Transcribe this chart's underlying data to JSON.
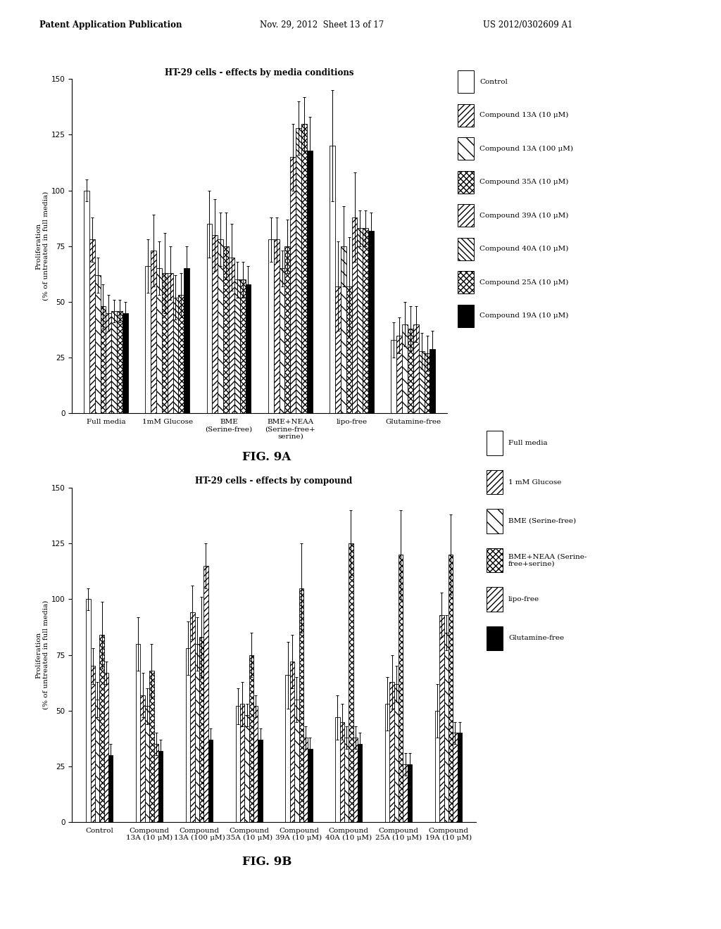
{
  "fig9a": {
    "title": "HT-29 cells - effects by media conditions",
    "ylabel": "Proliferation\n(% of untreated in full media)",
    "groups": [
      "Full media",
      "1mM Glucose",
      "BME\n(Serine-free)",
      "BME+NEAA\n(Serine-free+\nserine)",
      "lipo-free",
      "Glutamine-free"
    ],
    "series_labels": [
      "Control",
      "Compound 13A (10 μM)",
      "Compound 13A (100 μM)",
      "Compound 35A (10 μM)",
      "Compound 39A (10 μM)",
      "Compound 40A (10 μM)",
      "Compound 25A (10 μM)",
      "Compound 19A (10 μM)"
    ],
    "group_data": [
      [
        100,
        78,
        62,
        48,
        45,
        46,
        46,
        45
      ],
      [
        66,
        73,
        65,
        63,
        63,
        52,
        53,
        65
      ],
      [
        85,
        80,
        78,
        75,
        70,
        60,
        60,
        58
      ],
      [
        78,
        78,
        65,
        75,
        115,
        128,
        130,
        118
      ],
      [
        120,
        57,
        75,
        57,
        88,
        83,
        83,
        82
      ],
      [
        33,
        35,
        40,
        38,
        40,
        28,
        27,
        29
      ]
    ],
    "group_errs": [
      [
        5,
        10,
        8,
        10,
        8,
        5,
        5,
        5
      ],
      [
        12,
        16,
        12,
        18,
        12,
        10,
        10,
        10
      ],
      [
        15,
        16,
        12,
        15,
        15,
        8,
        8,
        8
      ],
      [
        10,
        10,
        8,
        12,
        15,
        12,
        12,
        15
      ],
      [
        25,
        20,
        18,
        22,
        20,
        8,
        8,
        8
      ],
      [
        8,
        8,
        10,
        10,
        8,
        8,
        8,
        8
      ]
    ],
    "n_series": 8,
    "n_groups": 6
  },
  "fig9b": {
    "title": "HT-29 cells - effects by compound",
    "ylabel": "Proliferation\n(% of untreated in full media)",
    "groups": [
      "Control",
      "Compound\n13A (10 μM)",
      "Compound\n13A (100 μM)",
      "Compound\n35A (10 μM)",
      "Compound\n39A (10 μM)",
      "Compound\n40A (10 μM)",
      "Compound\n25A (10 μM)",
      "Compound\n19A (10 μM)"
    ],
    "series_labels": [
      "Full media",
      "1 mM Glucose",
      "BME (Serine-free)",
      "BME+NEAA (Serine-\nfree+serine)",
      "lipo-free",
      "Glutamine-free"
    ],
    "group_data": [
      [
        100,
        70,
        55,
        84,
        67,
        30
      ],
      [
        80,
        57,
        52,
        68,
        35,
        32
      ],
      [
        78,
        94,
        80,
        83,
        115,
        37
      ],
      [
        52,
        53,
        48,
        75,
        52,
        37
      ],
      [
        66,
        72,
        55,
        105,
        38,
        33
      ],
      [
        47,
        45,
        38,
        125,
        38,
        35
      ],
      [
        53,
        63,
        62,
        120,
        26,
        26
      ],
      [
        50,
        93,
        85,
        120,
        40,
        40
      ]
    ],
    "group_errs": [
      [
        5,
        8,
        8,
        15,
        5,
        5
      ],
      [
        12,
        10,
        8,
        12,
        5,
        5
      ],
      [
        12,
        12,
        12,
        18,
        10,
        5
      ],
      [
        8,
        10,
        5,
        10,
        5,
        5
      ],
      [
        15,
        12,
        10,
        20,
        5,
        5
      ],
      [
        10,
        8,
        5,
        15,
        5,
        5
      ],
      [
        12,
        12,
        8,
        20,
        5,
        5
      ],
      [
        12,
        10,
        8,
        18,
        5,
        5
      ]
    ],
    "n_series": 6,
    "n_groups": 8
  },
  "hatch_styles_a": [
    "",
    "////",
    "\\\\",
    "xxxx",
    "////",
    "\\\\\\\\",
    "xxxx",
    ""
  ],
  "face_colors_a": [
    "white",
    "white",
    "white",
    "white",
    "white",
    "white",
    "white",
    "black"
  ],
  "hatch_styles_b": [
    "",
    "////",
    "\\\\",
    "xxxx",
    "////",
    ""
  ],
  "face_colors_b": [
    "white",
    "white",
    "white",
    "white",
    "white",
    "black"
  ]
}
